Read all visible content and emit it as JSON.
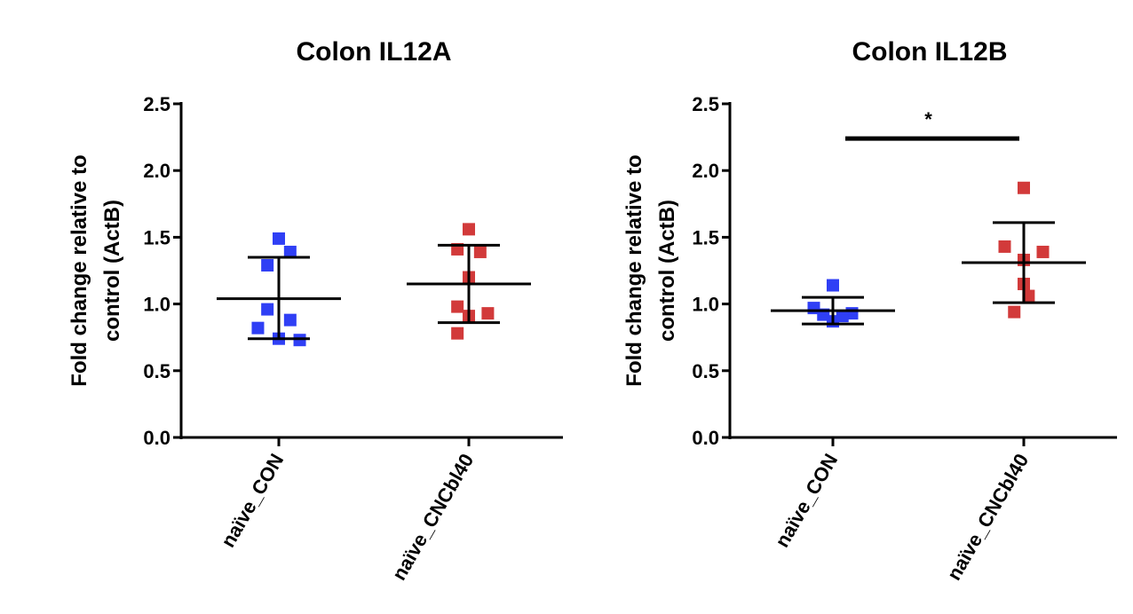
{
  "chart_data": [
    {
      "type": "scatter",
      "title": "Colon IL12A",
      "ylabel_lines": [
        "Fold change relative to",
        "control (ActB)"
      ],
      "ylim": [
        0,
        2.5
      ],
      "yticks": [
        "0.0",
        "0.5",
        "1.0",
        "1.5",
        "2.0",
        "2.5"
      ],
      "categories": [
        "naïve_CON",
        "naïve_CNCbl40"
      ],
      "series": [
        {
          "name": "naïve_CON",
          "color": "#2f3ff5",
          "values": [
            1.49,
            1.39,
            1.29,
            0.96,
            0.88,
            0.82,
            0.74,
            0.73
          ],
          "offsets": [
            0.0,
            0.12,
            -0.12,
            -0.12,
            0.12,
            -0.22,
            0.0,
            0.22
          ],
          "mean": 1.04,
          "error": [
            0.74,
            1.35
          ]
        },
        {
          "name": "naïve_CNCbl40",
          "color": "#d23a3a",
          "values": [
            1.56,
            1.41,
            1.39,
            1.2,
            0.98,
            0.93,
            0.91,
            0.78
          ],
          "offsets": [
            0.0,
            -0.12,
            0.12,
            0.0,
            -0.12,
            0.2,
            0.0,
            -0.12
          ],
          "mean": 1.15,
          "error": [
            0.86,
            1.44
          ]
        }
      ],
      "significance": null
    },
    {
      "type": "scatter",
      "title": "Colon IL12B",
      "ylabel_lines": [
        "Fold change relative to",
        "control (ActB)"
      ],
      "ylim": [
        0,
        2.5
      ],
      "yticks": [
        "0.0",
        "0.5",
        "1.0",
        "1.5",
        "2.0",
        "2.5"
      ],
      "categories": [
        "naïve_CON",
        "naïve_CNCbl40"
      ],
      "series": [
        {
          "name": "naïve_CON",
          "color": "#2f3ff5",
          "values": [
            1.14,
            0.97,
            0.93,
            0.92,
            0.91,
            0.87
          ],
          "offsets": [
            0.0,
            -0.2,
            0.2,
            -0.1,
            0.1,
            0.0
          ],
          "mean": 0.95,
          "error": [
            0.85,
            1.05
          ]
        },
        {
          "name": "naïve_CNCbl40",
          "color": "#d23a3a",
          "values": [
            1.87,
            1.43,
            1.39,
            1.33,
            1.15,
            1.06,
            0.94
          ],
          "offsets": [
            0.0,
            -0.2,
            0.2,
            0.0,
            0.0,
            0.05,
            -0.1
          ],
          "mean": 1.31,
          "error": [
            1.01,
            1.61
          ]
        }
      ],
      "significance": {
        "label": "*",
        "y": 2.24
      }
    }
  ]
}
